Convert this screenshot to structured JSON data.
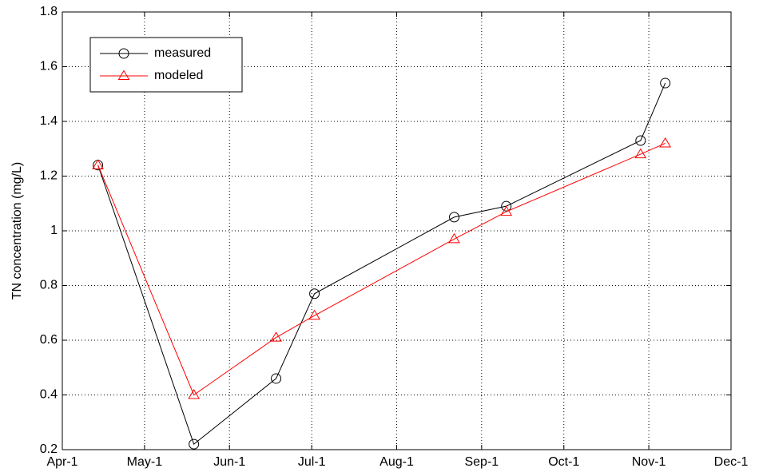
{
  "chart_data": {
    "type": "line",
    "ylabel": "TN concentration (mg/L)",
    "x": [
      "04-14",
      "05-19",
      "06-18",
      "07-02",
      "08-22",
      "09-10",
      "10-29",
      "11-07"
    ],
    "series": [
      {
        "name": "measured",
        "color": "#000000",
        "marker": "circle",
        "values": [
          1.24,
          0.22,
          0.46,
          0.77,
          1.05,
          1.09,
          1.33,
          1.54
        ]
      },
      {
        "name": "modeled",
        "color": "#ff0000",
        "marker": "triangle",
        "values": [
          1.24,
          0.4,
          0.61,
          0.69,
          0.97,
          1.07,
          1.28,
          1.32
        ]
      }
    ],
    "xlim": [
      "04-01",
      "12-01"
    ],
    "xticks": [
      {
        "value": "04-01",
        "label": "Apr-1"
      },
      {
        "value": "05-01",
        "label": "May-1"
      },
      {
        "value": "06-01",
        "label": "Jun-1"
      },
      {
        "value": "07-01",
        "label": "Jul-1"
      },
      {
        "value": "08-01",
        "label": "Aug-1"
      },
      {
        "value": "09-01",
        "label": "Sep-1"
      },
      {
        "value": "10-01",
        "label": "Oct-1"
      },
      {
        "value": "11-01",
        "label": "Nov-1"
      },
      {
        "value": "12-01",
        "label": "Dec-1"
      }
    ],
    "ylim": [
      0.2,
      1.8
    ],
    "yticks": [
      0.2,
      0.4,
      0.6,
      0.8,
      1,
      1.2,
      1.4,
      1.6,
      1.8
    ],
    "grid": true,
    "legend": "upper left"
  }
}
